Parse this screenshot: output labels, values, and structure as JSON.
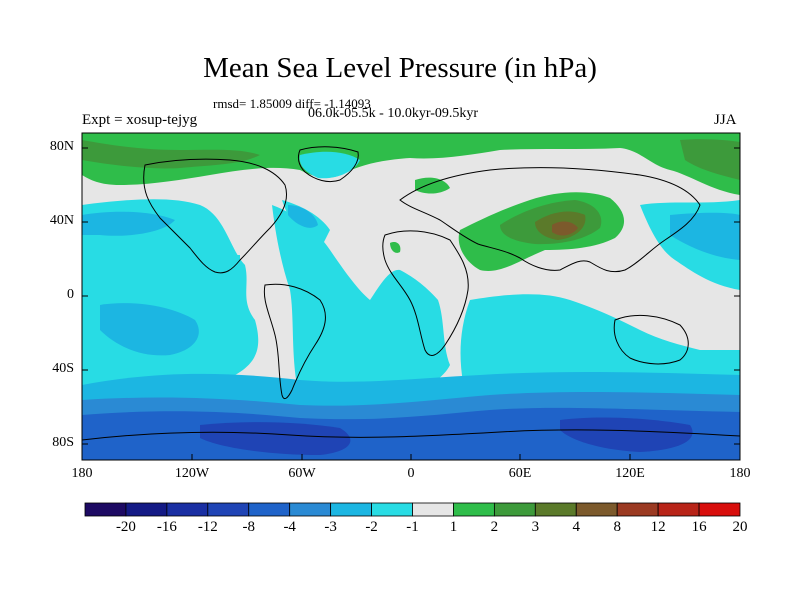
{
  "title": "Mean Sea Level Pressure (in hPa)",
  "stats": "rmsd= 1.85009 diff= -1.14093",
  "period": "06.0k-05.5k - 10.0kyr-09.5kyr",
  "experiment": "Expt = xosup-tejyg",
  "season": "JJA",
  "lat_labels": [
    "80N",
    "40N",
    "0",
    "40S",
    "80S"
  ],
  "lon_labels": [
    "180",
    "120W",
    "60W",
    "0",
    "60E",
    "120E",
    "180"
  ],
  "colorbar": {
    "labels": [
      "-20",
      "-16",
      "-12",
      "-8",
      "-4",
      "-3",
      "-2",
      "-1",
      "1",
      "2",
      "3",
      "4",
      "8",
      "12",
      "16",
      "20"
    ],
    "colors": [
      "#1d0a63",
      "#141a85",
      "#1a2fa3",
      "#1f44b5",
      "#1f63c9",
      "#2a8ad4",
      "#1cb6e2",
      "#28dce4",
      "#e6e6e6",
      "#2fbd4a",
      "#3d9a3b",
      "#5b7a2a",
      "#7c5a2c",
      "#9b3a22",
      "#b82418",
      "#d80e0c"
    ]
  },
  "colors": {
    "land_outline": "#000000",
    "frame": "#000000"
  }
}
